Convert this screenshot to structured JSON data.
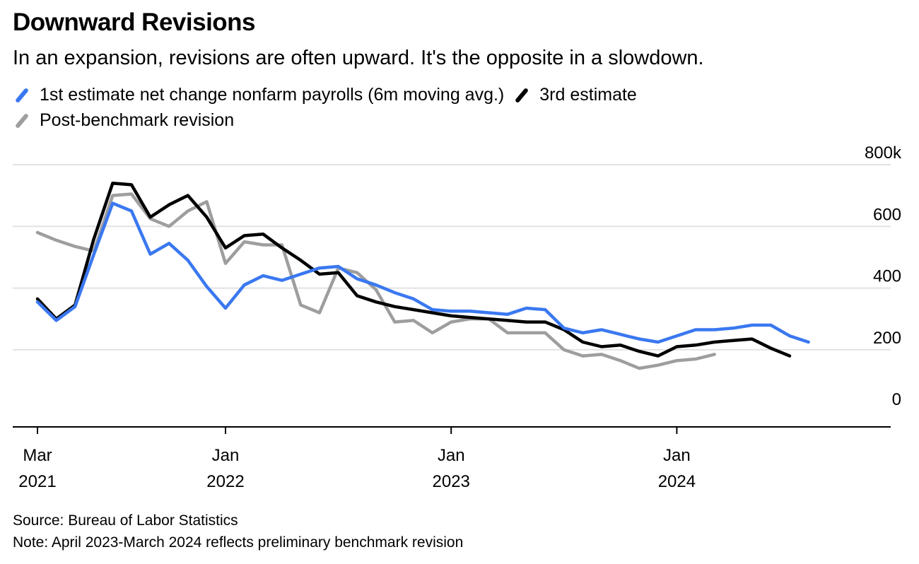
{
  "header": {
    "title": "Downward Revisions",
    "subtitle": "In an expansion, revisions are often upward. It's the opposite in a slowdown."
  },
  "footer": {
    "source": "Source: Bureau of Labor Statistics",
    "note": "Note: April 2023-March 2024 reflects preliminary benchmark revision"
  },
  "chart_data": {
    "type": "line",
    "title": "Downward Revisions",
    "subtitle": "In an expansion, revisions are often upward. It's the opposite in a slowdown.",
    "y_unit": "thousands",
    "ylim": [
      -50,
      800
    ],
    "y_ticks": [
      0,
      200,
      400,
      600,
      800
    ],
    "y_tick_labels": [
      "0",
      "200",
      "400",
      "600",
      "800k"
    ],
    "x_start": "2021-03",
    "x_ticks": [
      {
        "month": "2021-03",
        "line1": "Mar",
        "line2": "2021"
      },
      {
        "month": "2022-01",
        "line1": "Jan",
        "line2": "2022"
      },
      {
        "month": "2023-01",
        "line1": "Jan",
        "line2": "2023"
      },
      {
        "month": "2024-01",
        "line1": "Jan",
        "line2": "2024"
      }
    ],
    "grid": true,
    "legend_position": "top-left",
    "series": [
      {
        "name": "Post-benchmark revision",
        "color": "#9e9e9e",
        "x": [
          "2021-03",
          "2021-04",
          "2021-05",
          "2021-06",
          "2021-07",
          "2021-08",
          "2021-09",
          "2021-10",
          "2021-11",
          "2021-12",
          "2022-01",
          "2022-02",
          "2022-03",
          "2022-04",
          "2022-05",
          "2022-06",
          "2022-07",
          "2022-08",
          "2022-09",
          "2022-10",
          "2022-11",
          "2022-12",
          "2023-01",
          "2023-02",
          "2023-03",
          "2023-04",
          "2023-05",
          "2023-06",
          "2023-07",
          "2023-08",
          "2023-09",
          "2023-10",
          "2023-11",
          "2023-12",
          "2024-01",
          "2024-02",
          "2024-03",
          "2024-04"
        ],
        "values": [
          580,
          555,
          535,
          520,
          700,
          705,
          625,
          600,
          650,
          680,
          480,
          550,
          540,
          540,
          345,
          320,
          465,
          450,
          395,
          290,
          295,
          255,
          290,
          300,
          300,
          255,
          255,
          255,
          200,
          180,
          185,
          165,
          140,
          150,
          165,
          170,
          185,
          null
        ]
      },
      {
        "name": "3rd estimate",
        "color": "#000000",
        "x": [
          "2021-03",
          "2021-04",
          "2021-05",
          "2021-06",
          "2021-07",
          "2021-08",
          "2021-09",
          "2021-10",
          "2021-11",
          "2021-12",
          "2022-01",
          "2022-02",
          "2022-03",
          "2022-04",
          "2022-05",
          "2022-06",
          "2022-07",
          "2022-08",
          "2022-09",
          "2022-10",
          "2022-11",
          "2022-12",
          "2023-01",
          "2023-02",
          "2023-03",
          "2023-04",
          "2023-05",
          "2023-06",
          "2023-07",
          "2023-08",
          "2023-09",
          "2023-10",
          "2023-11",
          "2023-12",
          "2024-01",
          "2024-02",
          "2024-03",
          "2024-04",
          "2024-05",
          "2024-06",
          "2024-07",
          "2024-08"
        ],
        "values": [
          365,
          300,
          345,
          560,
          740,
          735,
          630,
          670,
          700,
          630,
          530,
          570,
          575,
          530,
          490,
          445,
          450,
          375,
          355,
          340,
          330,
          320,
          310,
          305,
          300,
          295,
          290,
          290,
          265,
          225,
          210,
          215,
          195,
          180,
          210,
          215,
          225,
          230,
          235,
          205,
          180,
          null
        ]
      },
      {
        "name": "1st estimate net change nonfarm payrolls (6m moving avg.)",
        "color": "#3a78f0",
        "x": [
          "2021-03",
          "2021-04",
          "2021-05",
          "2021-06",
          "2021-07",
          "2021-08",
          "2021-09",
          "2021-10",
          "2021-11",
          "2021-12",
          "2022-01",
          "2022-02",
          "2022-03",
          "2022-04",
          "2022-05",
          "2022-06",
          "2022-07",
          "2022-08",
          "2022-09",
          "2022-10",
          "2022-11",
          "2022-12",
          "2023-01",
          "2023-02",
          "2023-03",
          "2023-04",
          "2023-05",
          "2023-06",
          "2023-07",
          "2023-08",
          "2023-09",
          "2023-10",
          "2023-11",
          "2023-12",
          "2024-01",
          "2024-02",
          "2024-03",
          "2024-04",
          "2024-05",
          "2024-06",
          "2024-07",
          "2024-08",
          "2024-09"
        ],
        "values": [
          355,
          295,
          340,
          510,
          675,
          650,
          510,
          545,
          490,
          405,
          335,
          410,
          440,
          425,
          445,
          465,
          470,
          430,
          410,
          385,
          365,
          330,
          325,
          325,
          320,
          315,
          335,
          330,
          270,
          255,
          265,
          250,
          235,
          225,
          245,
          265,
          265,
          270,
          280,
          280,
          245,
          225,
          null
        ]
      }
    ]
  }
}
